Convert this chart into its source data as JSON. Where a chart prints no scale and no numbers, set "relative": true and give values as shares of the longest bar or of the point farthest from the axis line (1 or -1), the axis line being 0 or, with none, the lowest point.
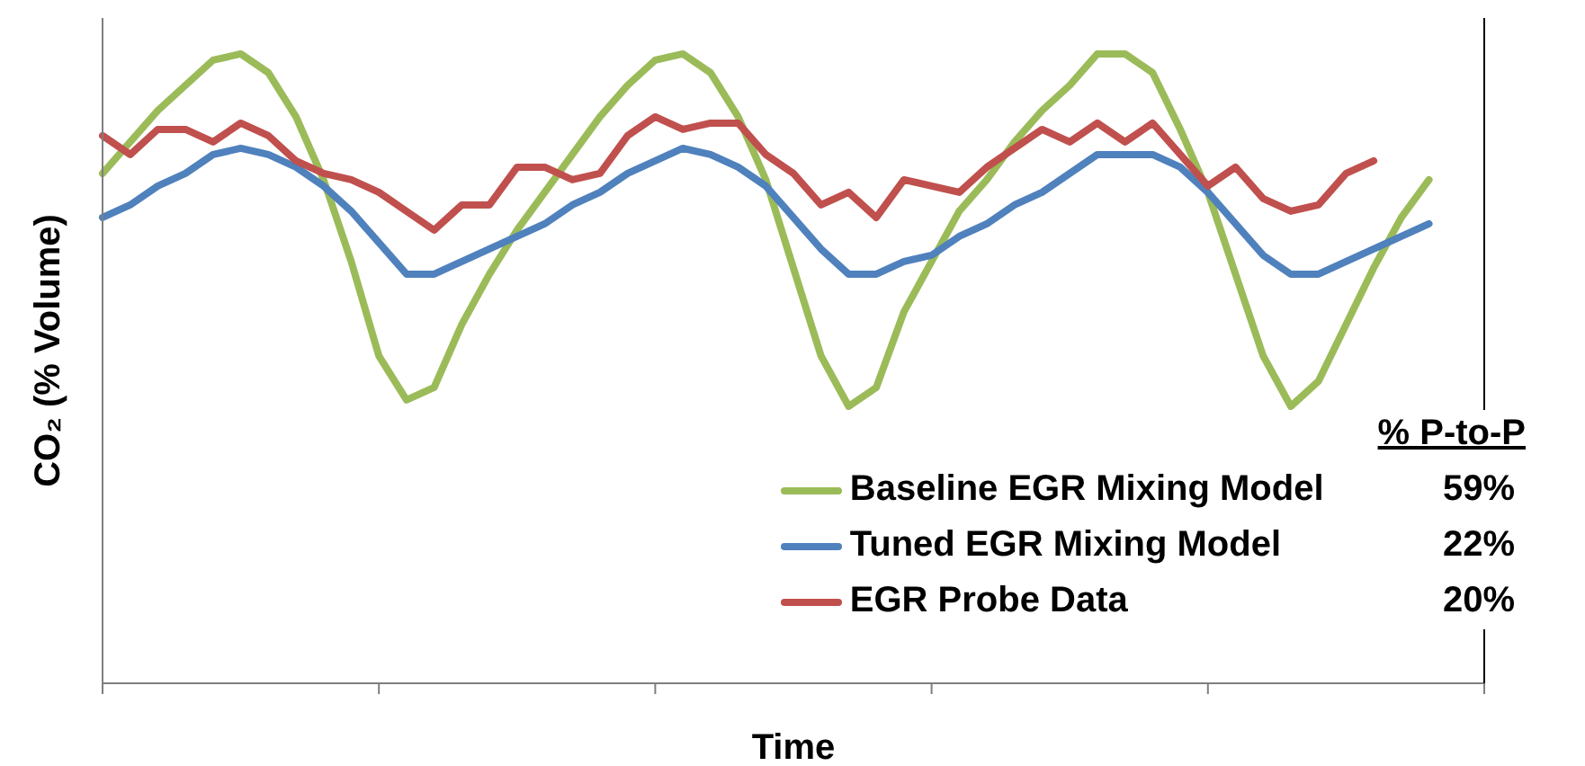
{
  "chart_data": {
    "type": "line",
    "relative": true,
    "xlabel": "Time",
    "ylabel": "CO₂ (% Volume)",
    "legend": "bottom right",
    "marker": "none",
    "line_style": "solid",
    "categories": [
      null,
      null,
      null,
      null,
      null,
      null,
      null,
      null,
      null,
      null,
      null,
      null,
      null,
      null,
      null,
      null,
      null,
      null,
      null,
      null,
      null,
      null,
      null,
      null,
      null,
      null,
      null,
      null,
      null,
      null,
      null,
      null,
      null,
      null,
      null,
      null,
      null,
      null,
      null,
      null,
      null,
      null,
      null,
      null,
      null,
      null,
      null,
      null,
      null,
      null,
      null
    ],
    "series": [
      {
        "name": "Baseline EGR Mixing Model",
        "color": "#9bbb59",
        "values": [
          0.81,
          0.86,
          0.91,
          0.95,
          0.99,
          1.0,
          0.97,
          0.9,
          0.8,
          0.67,
          0.52,
          0.45,
          0.47,
          0.57,
          0.65,
          0.72,
          0.78,
          0.84,
          0.9,
          0.95,
          0.99,
          1.0,
          0.97,
          0.9,
          0.8,
          0.66,
          0.52,
          0.44,
          0.47,
          0.59,
          0.67,
          0.75,
          0.8,
          0.86,
          0.91,
          0.95,
          1.0,
          1.0,
          0.97,
          0.88,
          0.78,
          0.65,
          0.52,
          0.44,
          0.48,
          0.57,
          0.66,
          0.74,
          0.8,
          null,
          null
        ]
      },
      {
        "name": "Tuned EGR Mixing Model",
        "color": "#4f81bd",
        "values": [
          0.74,
          0.76,
          0.79,
          0.81,
          0.84,
          0.85,
          0.84,
          0.82,
          0.79,
          0.75,
          0.7,
          0.65,
          0.65,
          0.67,
          0.69,
          0.71,
          0.73,
          0.76,
          0.78,
          0.81,
          0.83,
          0.85,
          0.84,
          0.82,
          0.79,
          0.74,
          0.69,
          0.65,
          0.65,
          0.67,
          0.68,
          0.71,
          0.73,
          0.76,
          0.78,
          0.81,
          0.84,
          0.84,
          0.84,
          0.82,
          0.78,
          0.73,
          0.68,
          0.65,
          0.65,
          0.67,
          0.69,
          0.71,
          0.73,
          null,
          null
        ]
      },
      {
        "name": "EGR Probe Data",
        "color": "#c0504d",
        "values": [
          0.87,
          0.84,
          0.88,
          0.88,
          0.86,
          0.89,
          0.87,
          0.83,
          0.81,
          0.8,
          0.78,
          0.75,
          0.72,
          0.76,
          0.76,
          0.82,
          0.82,
          0.8,
          0.81,
          0.87,
          0.9,
          0.88,
          0.89,
          0.89,
          0.84,
          0.81,
          0.76,
          0.78,
          0.74,
          0.8,
          0.79,
          0.78,
          0.82,
          0.85,
          0.88,
          0.86,
          0.89,
          0.86,
          0.89,
          0.84,
          0.79,
          0.82,
          0.77,
          0.75,
          0.76,
          0.81,
          0.83,
          null,
          null,
          null,
          null
        ]
      }
    ],
    "annotations": [
      "% P-to-P",
      "59%",
      "22%",
      "20%"
    ]
  }
}
